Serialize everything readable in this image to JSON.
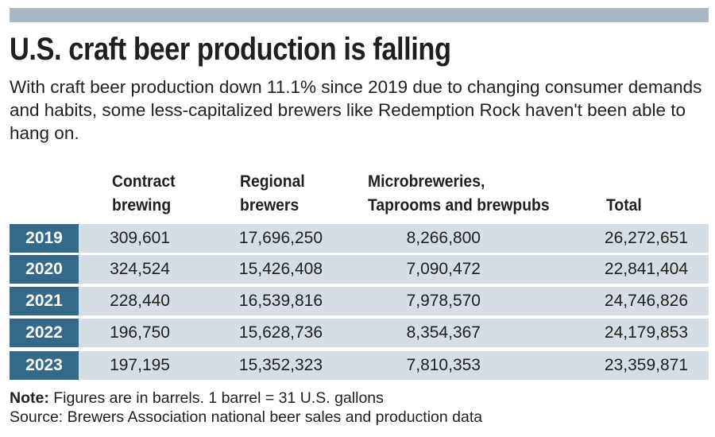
{
  "colors": {
    "top_bar": "#a9b8c6",
    "year_cell": "#35698a",
    "row_bg": "#d5dde5"
  },
  "title": "U.S. craft beer production is falling",
  "subtitle": "With craft beer production down 11.1% since 2019 due to changing consumer demands and habits, some less-capitalized brewers like Redemption Rock haven't been able to hang on.",
  "chart_data": {
    "type": "table",
    "title": "U.S. craft beer production is falling",
    "columns": [
      {
        "line1": "Contract",
        "line2": "brewing"
      },
      {
        "line1": "Regional",
        "line2": "brewers"
      },
      {
        "line1": "Microbreweries,",
        "line2": "Taprooms and brewpubs"
      },
      {
        "line1": "",
        "line2": "Total"
      }
    ],
    "rows": [
      {
        "year": "2019",
        "contract": "309,601",
        "regional": "17,696,250",
        "micro": "8,266,800",
        "total": "26,272,651"
      },
      {
        "year": "2020",
        "contract": "324,524",
        "regional": "15,426,408",
        "micro": "7,090,472",
        "total": "22,841,404"
      },
      {
        "year": "2021",
        "contract": "228,440",
        "regional": "16,539,816",
        "micro": "7,978,570",
        "total": "24,746,826"
      },
      {
        "year": "2022",
        "contract": "196,750",
        "regional": "15,628,736",
        "micro": "8,354,367",
        "total": "24,179,853"
      },
      {
        "year": "2023",
        "contract": "197,195",
        "regional": "15,352,323",
        "micro": "7,810,353",
        "total": "23,359,871"
      }
    ]
  },
  "footer": {
    "note_label": "Note:",
    "note_text": " Figures are in barrels. 1 barrel = 31 U.S. gallons",
    "source": "Source: Brewers Association national beer sales and production data"
  }
}
